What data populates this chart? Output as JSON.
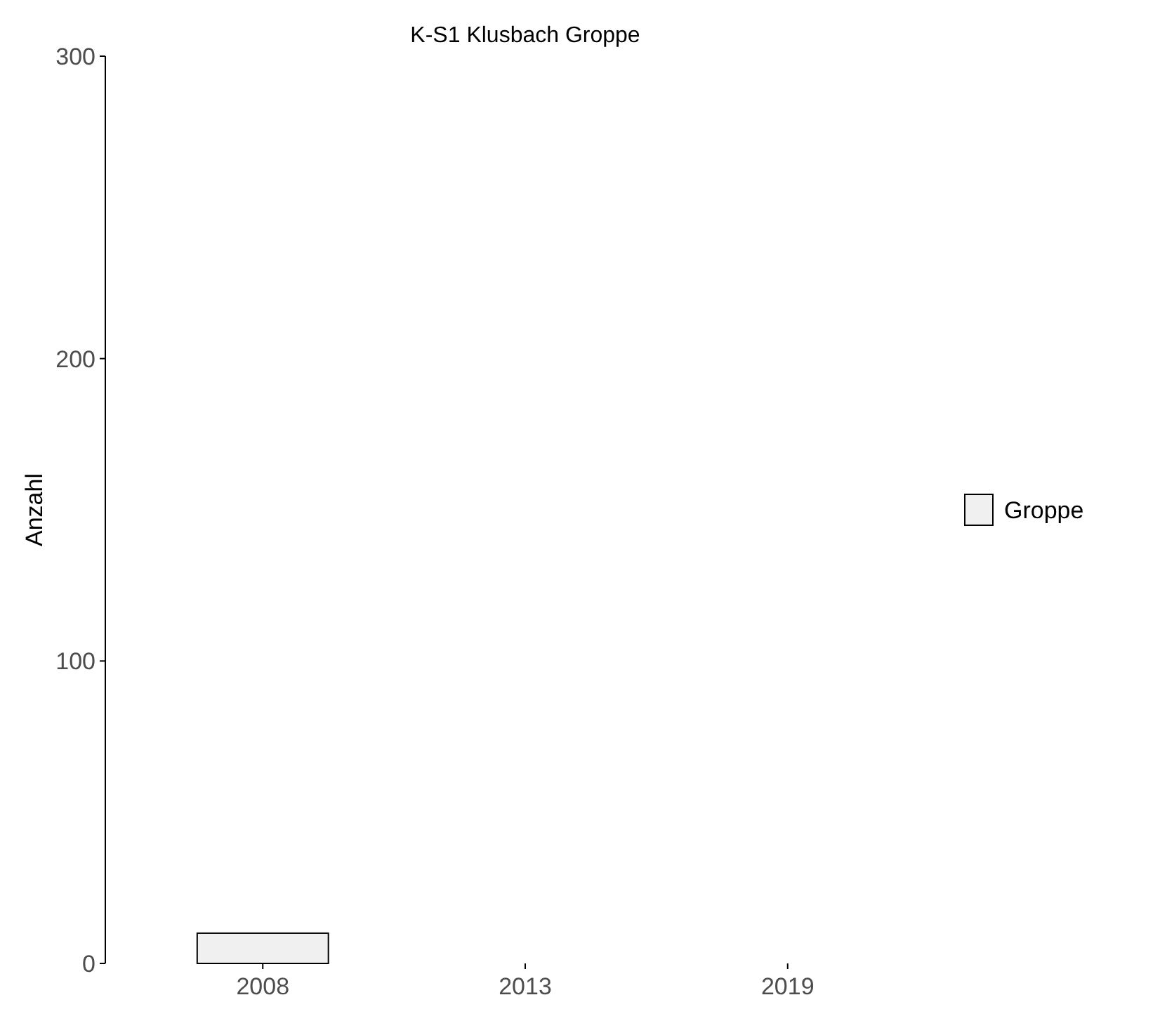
{
  "chart_data": {
    "type": "bar",
    "title": "K-S1 Klusbach Groppe",
    "ylabel": "Anzahl",
    "categories": [
      "2008",
      "2013",
      "2019"
    ],
    "series": [
      {
        "name": "Groppe",
        "color": "#f0f0f0",
        "values": [
          10,
          0,
          0
        ]
      }
    ],
    "ylim": [
      0,
      300
    ],
    "yticks": [
      0,
      100,
      200,
      300
    ],
    "grid": false,
    "legend": "right"
  }
}
